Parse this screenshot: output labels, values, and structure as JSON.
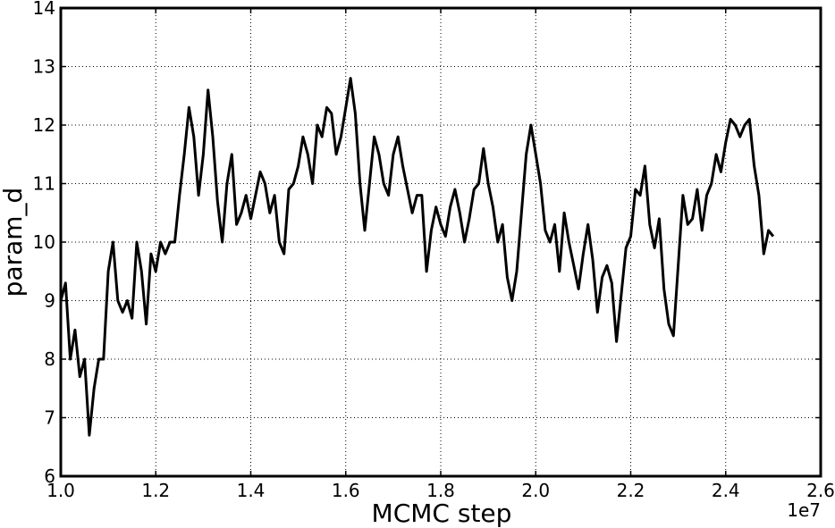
{
  "chart_data": {
    "type": "line",
    "title": "",
    "xlabel": "MCMC step",
    "ylabel": "param_d",
    "x_offset_label": "1e7",
    "xlim": [
      1.0,
      2.6
    ],
    "ylim": [
      6,
      14
    ],
    "x_ticks": [
      "1.0",
      "1.2",
      "1.4",
      "1.6",
      "1.8",
      "2.0",
      "2.2",
      "2.4",
      "2.6"
    ],
    "y_ticks": [
      "6",
      "7",
      "8",
      "9",
      "10",
      "11",
      "12",
      "13",
      "14"
    ],
    "grid": true,
    "line_color": "#000000",
    "series": [
      {
        "x": [
          1.0,
          1.01,
          1.02,
          1.03,
          1.04,
          1.05,
          1.06,
          1.07,
          1.08,
          1.09,
          1.1,
          1.11,
          1.12,
          1.13,
          1.14,
          1.15,
          1.16,
          1.17,
          1.18,
          1.19,
          1.2,
          1.21,
          1.22,
          1.23,
          1.24,
          1.25,
          1.26,
          1.27,
          1.28,
          1.29,
          1.3,
          1.31,
          1.32,
          1.33,
          1.34,
          1.35,
          1.36,
          1.37,
          1.38,
          1.39,
          1.4,
          1.41,
          1.42,
          1.43,
          1.44,
          1.45,
          1.46,
          1.47,
          1.48,
          1.49,
          1.5,
          1.51,
          1.52,
          1.53,
          1.54,
          1.55,
          1.56,
          1.57,
          1.58,
          1.59,
          1.6,
          1.61,
          1.62,
          1.63,
          1.64,
          1.65,
          1.66,
          1.67,
          1.68,
          1.69,
          1.7,
          1.71,
          1.72,
          1.73,
          1.74,
          1.75,
          1.76,
          1.77,
          1.78,
          1.79,
          1.8,
          1.81,
          1.82,
          1.83,
          1.84,
          1.85,
          1.86,
          1.87,
          1.88,
          1.89,
          1.9,
          1.91,
          1.92,
          1.93,
          1.94,
          1.95,
          1.96,
          1.97,
          1.98,
          1.99,
          2.0,
          2.01,
          2.02,
          2.03,
          2.04,
          2.05,
          2.06,
          2.07,
          2.08,
          2.09,
          2.1,
          2.11,
          2.12,
          2.13,
          2.14,
          2.15,
          2.16,
          2.17,
          2.18,
          2.19,
          2.2,
          2.21,
          2.22,
          2.23,
          2.24,
          2.25,
          2.26,
          2.27,
          2.28,
          2.29,
          2.3,
          2.31,
          2.32,
          2.33,
          2.34,
          2.35,
          2.36,
          2.37,
          2.38,
          2.39,
          2.4,
          2.41,
          2.42,
          2.43,
          2.44,
          2.45,
          2.46,
          2.47,
          2.48,
          2.49,
          2.5
        ],
        "y": [
          9.0,
          9.3,
          8.0,
          8.5,
          7.7,
          8.0,
          6.7,
          7.5,
          8.0,
          8.0,
          9.5,
          10.0,
          9.0,
          8.8,
          9.0,
          8.7,
          10.0,
          9.5,
          8.6,
          9.8,
          9.5,
          10.0,
          9.8,
          10.0,
          10.0,
          10.8,
          11.5,
          12.3,
          11.8,
          10.8,
          11.5,
          12.6,
          11.8,
          10.7,
          10.0,
          11.0,
          11.5,
          10.3,
          10.5,
          10.8,
          10.4,
          10.8,
          11.2,
          11.0,
          10.5,
          10.8,
          10.0,
          9.8,
          10.9,
          11.0,
          11.3,
          11.8,
          11.5,
          11.0,
          12.0,
          11.8,
          12.3,
          12.2,
          11.5,
          11.8,
          12.3,
          12.8,
          12.2,
          11.0,
          10.2,
          11.0,
          11.8,
          11.5,
          11.0,
          10.8,
          11.5,
          11.8,
          11.3,
          10.9,
          10.5,
          10.8,
          10.8,
          9.5,
          10.2,
          10.6,
          10.3,
          10.1,
          10.6,
          10.9,
          10.5,
          10.0,
          10.4,
          10.9,
          11.0,
          11.6,
          11.0,
          10.6,
          10.0,
          10.3,
          9.4,
          9.0,
          9.5,
          10.5,
          11.5,
          12.0,
          11.5,
          11.0,
          10.2,
          10.0,
          10.3,
          9.5,
          10.5,
          10.0,
          9.6,
          9.2,
          9.8,
          10.3,
          9.7,
          8.8,
          9.4,
          9.6,
          9.3,
          8.3,
          9.1,
          9.9,
          10.1,
          10.9,
          10.8,
          11.3,
          10.3,
          9.9,
          10.4,
          9.2,
          8.6,
          8.4,
          9.6,
          10.8,
          10.3,
          10.4,
          10.9,
          10.2,
          10.8,
          11.0,
          11.5,
          11.2,
          11.7,
          12.1,
          12.0,
          11.8,
          12.0,
          12.1,
          11.3,
          10.8,
          9.8,
          10.2,
          10.1
        ]
      }
    ]
  }
}
